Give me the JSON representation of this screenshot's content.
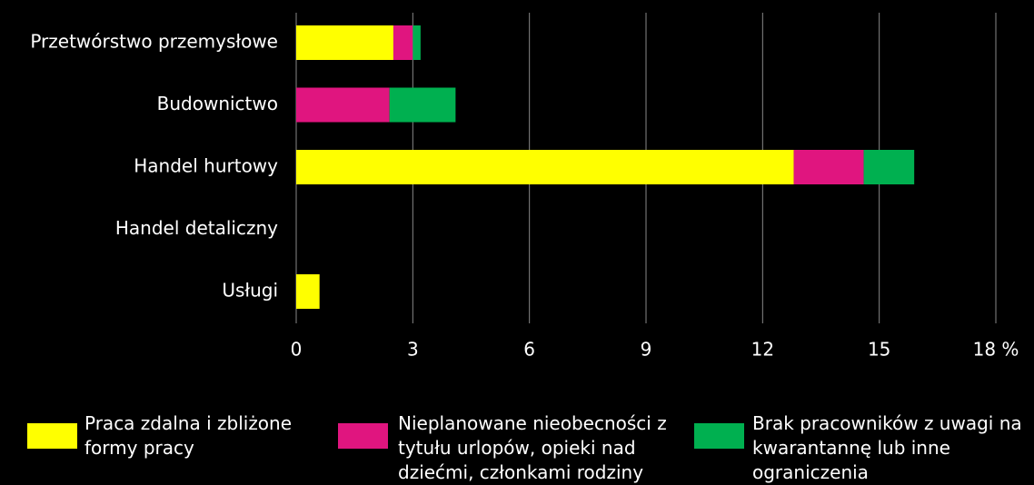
{
  "chart_data": {
    "type": "stacked_bar_horizontal",
    "categories": [
      "Przetwórstwo przemysłowe",
      "Budownictwo",
      "Handel hurtowy",
      "Handel detaliczny",
      "Usługi"
    ],
    "series": [
      {
        "name": "Praca zdalna i zbliżone formy pracy",
        "color": "#ffff00",
        "values": [
          2.5,
          0,
          12.8,
          0,
          0.6
        ]
      },
      {
        "name": "Nieplanowane nieobecności z tytułu urlopów, opieki nad dziećmi, członkami rodziny",
        "color": "#e0157f",
        "values": [
          0.5,
          2.4,
          1.8,
          0,
          0
        ]
      },
      {
        "name": "Brak pracowników z uwagi na kwarantannę lub inne ograniczenia",
        "color": "#00b050",
        "values": [
          0.2,
          1.7,
          1.3,
          0,
          0
        ]
      }
    ],
    "xlim": [
      0,
      18
    ],
    "xticks": [
      0,
      3,
      6,
      9,
      12,
      15,
      {
        "value": 18,
        "label": "18 %"
      }
    ],
    "grid": true
  }
}
